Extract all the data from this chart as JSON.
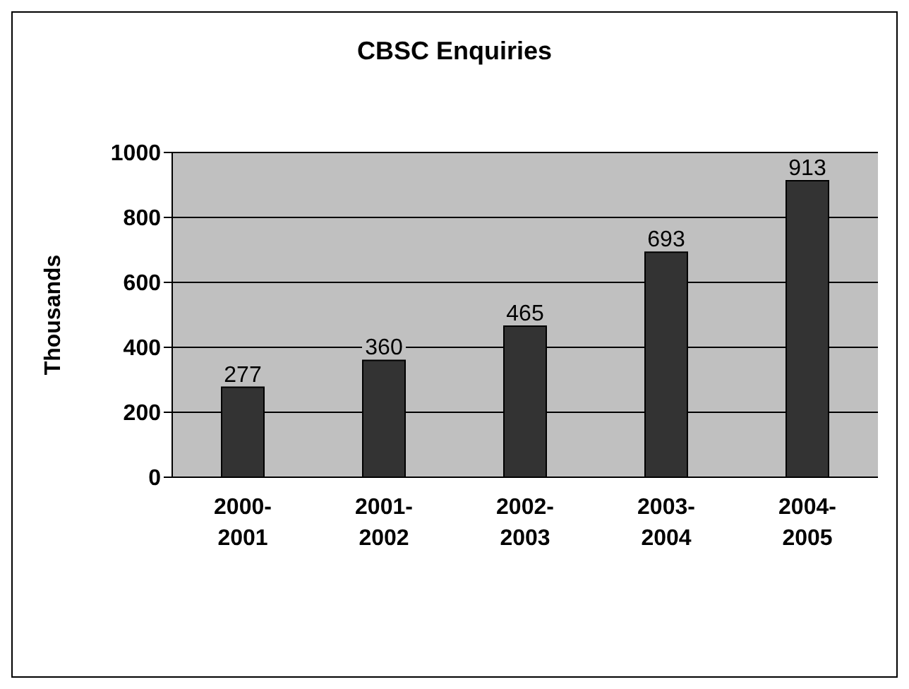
{
  "chart_data": {
    "type": "bar",
    "title": "CBSC Enquiries",
    "ylabel": "Thousands",
    "categories": [
      "2000-2001",
      "2001-2002",
      "2002-2003",
      "2003-2004",
      "2004-2005"
    ],
    "values": [
      277,
      360,
      465,
      693,
      913
    ],
    "color": "#333333",
    "ylim": [
      0,
      1000
    ],
    "yticks": [
      0,
      200,
      400,
      600,
      800,
      1000
    ],
    "grid": "y",
    "data_labels": true,
    "legend": false
  }
}
